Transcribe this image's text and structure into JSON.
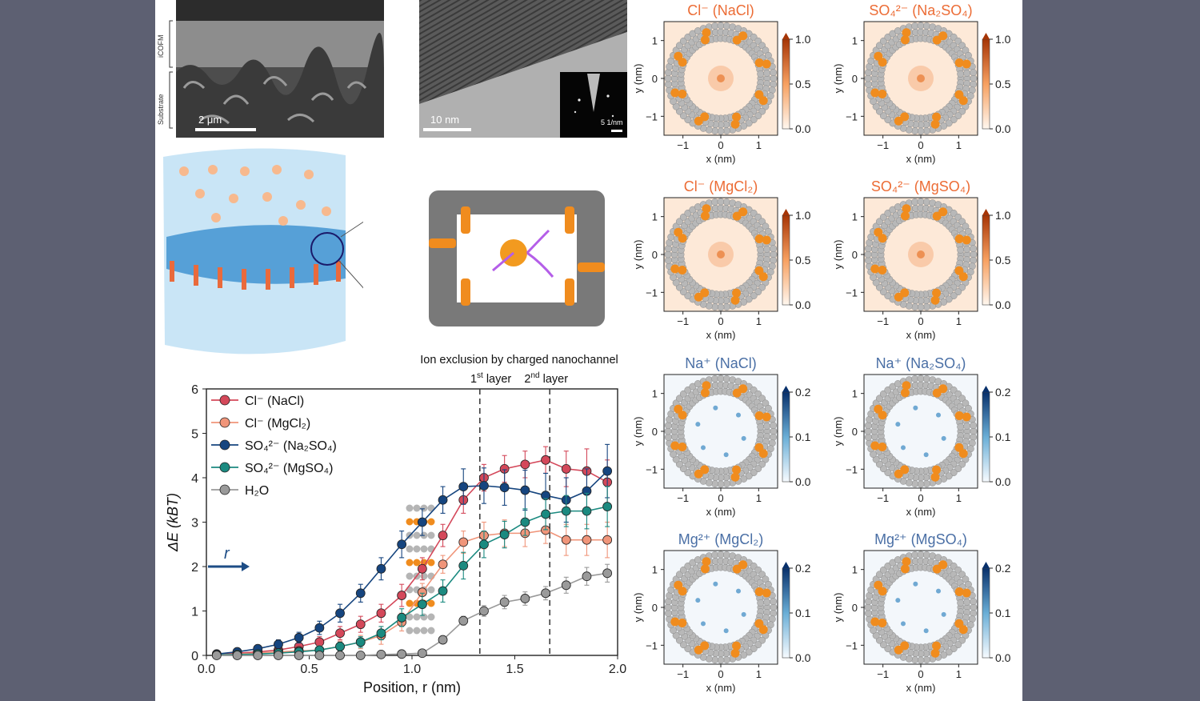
{
  "sem_image": {
    "layer_top_label": "iCOFM",
    "layer_bottom_label": "Substrate",
    "scale_bar_label": "2 μm"
  },
  "tem_image": {
    "scale_bar_label": "10 nm",
    "inset_scale_label": "5 1/nm"
  },
  "illustration_caption": {
    "line1": "Ion exclusion by charged nanochannel",
    "layer1_main": "1",
    "layer1_sup": "st",
    "layer1_rest": " layer",
    "layer2_main": "2",
    "layer2_sup": "nd",
    "layer2_rest": " layer",
    "arrow_label": "r"
  },
  "colors": {
    "cl_nacl": "#d4485a",
    "cl_mgcl2": "#f0957a",
    "so4_na2so4": "#16457f",
    "so4_mgso4": "#1b8a80",
    "h2o": "#9a9a9a",
    "anion_title": "#ec6c35",
    "cation_title": "#4a6fa5",
    "pore_atoms": "#b8b8b8",
    "charge_atoms": "#f08c1e"
  },
  "chart_data": [
    {
      "type": "line",
      "xlabel": "Position, r (nm)",
      "ylabel": "ΔE (kBT)",
      "xlim": [
        0,
        2.0
      ],
      "ylim": [
        0,
        6
      ],
      "xticks": [
        "0.0",
        "0.5",
        "1.0",
        "1.5",
        "2.0"
      ],
      "yticks": [
        "0",
        "1",
        "2",
        "3",
        "4",
        "5",
        "6"
      ],
      "vlines": [
        1.33,
        1.67
      ],
      "legend_position": "top-left",
      "x": [
        0.05,
        0.15,
        0.25,
        0.35,
        0.45,
        0.55,
        0.65,
        0.75,
        0.85,
        0.95,
        1.05,
        1.15,
        1.25,
        1.35,
        1.45,
        1.55,
        1.65,
        1.75,
        1.85,
        1.95
      ],
      "series": [
        {
          "name": "Cl⁻ (NaCl)",
          "values": [
            0.02,
            0.05,
            0.08,
            0.12,
            0.2,
            0.3,
            0.5,
            0.7,
            0.95,
            1.35,
            1.95,
            2.7,
            3.5,
            4.0,
            4.2,
            4.3,
            4.4,
            4.2,
            4.15,
            3.9
          ],
          "err": [
            0.05,
            0.05,
            0.08,
            0.08,
            0.1,
            0.12,
            0.15,
            0.18,
            0.2,
            0.25,
            0.25,
            0.25,
            0.3,
            0.3,
            0.3,
            0.3,
            0.3,
            0.4,
            0.5,
            0.5
          ]
        },
        {
          "name": "Cl⁻ (MgCl₂)",
          "values": [
            0.01,
            0.03,
            0.05,
            0.08,
            0.1,
            0.12,
            0.2,
            0.3,
            0.45,
            0.75,
            1.42,
            2.05,
            2.55,
            2.7,
            2.75,
            2.75,
            2.82,
            2.6,
            2.6,
            2.6
          ],
          "err": [
            0.04,
            0.04,
            0.05,
            0.06,
            0.08,
            0.1,
            0.12,
            0.15,
            0.2,
            0.2,
            0.2,
            0.2,
            0.25,
            0.3,
            0.3,
            0.3,
            0.3,
            0.35,
            0.35,
            0.4
          ]
        },
        {
          "name": "SO₄²⁻ (Na₂SO₄)",
          "values": [
            0.03,
            0.08,
            0.15,
            0.25,
            0.4,
            0.62,
            0.95,
            1.4,
            1.95,
            2.5,
            3.0,
            3.5,
            3.8,
            3.82,
            3.78,
            3.72,
            3.6,
            3.5,
            3.7,
            4.15
          ],
          "err": [
            0.05,
            0.06,
            0.08,
            0.1,
            0.12,
            0.15,
            0.2,
            0.2,
            0.25,
            0.3,
            0.3,
            0.3,
            0.4,
            0.4,
            0.4,
            0.45,
            0.5,
            0.5,
            0.5,
            0.6
          ]
        },
        {
          "name": "SO₄²⁻ (MgSO₄)",
          "values": [
            0.01,
            0.02,
            0.03,
            0.05,
            0.08,
            0.12,
            0.2,
            0.3,
            0.5,
            0.85,
            1.15,
            1.45,
            2.02,
            2.5,
            2.72,
            3.0,
            3.18,
            3.25,
            3.25,
            3.35
          ],
          "err": [
            0.03,
            0.04,
            0.04,
            0.05,
            0.06,
            0.08,
            0.1,
            0.12,
            0.15,
            0.2,
            0.25,
            0.25,
            0.3,
            0.3,
            0.3,
            0.3,
            0.35,
            0.35,
            0.4,
            0.45
          ]
        },
        {
          "name": "H₂O",
          "values": [
            0.0,
            0.0,
            0.0,
            0.0,
            0.0,
            0.0,
            0.0,
            0.0,
            0.02,
            0.03,
            0.05,
            0.35,
            0.78,
            1.0,
            1.2,
            1.28,
            1.4,
            1.58,
            1.78,
            1.85
          ],
          "err": [
            0.02,
            0.02,
            0.02,
            0.02,
            0.02,
            0.02,
            0.02,
            0.02,
            0.03,
            0.03,
            0.05,
            0.08,
            0.1,
            0.12,
            0.15,
            0.15,
            0.15,
            0.18,
            0.2,
            0.2
          ]
        }
      ]
    },
    {
      "type": "heatmap",
      "title": "Cl⁻ (NaCl)",
      "xlabel": "x (nm)",
      "ylabel": "y (nm)",
      "xticks": [
        "−1",
        "0",
        "1"
      ],
      "yticks": [
        "1",
        "0",
        "−1"
      ],
      "colorbar": {
        "ticks": [
          "1.0",
          "0.5",
          "0.0"
        ],
        "range": [
          0,
          1.0
        ],
        "colormap": "Oranges"
      }
    },
    {
      "type": "heatmap",
      "title": "SO₄²⁻ (Na₂SO₄)",
      "xlabel": "x (nm)",
      "ylabel": "y (nm)",
      "xticks": [
        "−1",
        "0",
        "1"
      ],
      "yticks": [
        "1",
        "0",
        "−1"
      ],
      "colorbar": {
        "ticks": [
          "1.0",
          "0.5",
          "0.0"
        ],
        "range": [
          0,
          1.0
        ],
        "colormap": "Oranges"
      }
    },
    {
      "type": "heatmap",
      "title": "Cl⁻ (MgCl₂)",
      "xlabel": "x (nm)",
      "ylabel": "y (nm)",
      "xticks": [
        "−1",
        "0",
        "1"
      ],
      "yticks": [
        "1",
        "0",
        "−1"
      ],
      "colorbar": {
        "ticks": [
          "1.0",
          "0.5",
          "0.0"
        ],
        "range": [
          0,
          1.0
        ],
        "colormap": "Oranges"
      }
    },
    {
      "type": "heatmap",
      "title": "SO₄²⁻ (MgSO₄)",
      "xlabel": "x (nm)",
      "ylabel": "y (nm)",
      "xticks": [
        "−1",
        "0",
        "1"
      ],
      "yticks": [
        "1",
        "0",
        "−1"
      ],
      "colorbar": {
        "ticks": [
          "1.0",
          "0.5",
          "0.0"
        ],
        "range": [
          0,
          1.0
        ],
        "colormap": "Oranges"
      }
    },
    {
      "type": "heatmap",
      "title": "Na⁺ (NaCl)",
      "xlabel": "x (nm)",
      "ylabel": "y (nm)",
      "xticks": [
        "−1",
        "0",
        "1"
      ],
      "yticks": [
        "1",
        "0",
        "−1"
      ],
      "colorbar": {
        "ticks": [
          "0.2",
          "0.1",
          "0.0"
        ],
        "range": [
          0,
          0.2
        ],
        "colormap": "Blues"
      }
    },
    {
      "type": "heatmap",
      "title": "Na⁺ (Na₂SO₄)",
      "xlabel": "x (nm)",
      "ylabel": "y (nm)",
      "xticks": [
        "−1",
        "0",
        "1"
      ],
      "yticks": [
        "1",
        "0",
        "−1"
      ],
      "colorbar": {
        "ticks": [
          "0.2",
          "0.1",
          "0.0"
        ],
        "range": [
          0,
          0.2
        ],
        "colormap": "Blues"
      }
    },
    {
      "type": "heatmap",
      "title": "Mg²⁺ (MgCl₂)",
      "xlabel": "x (nm)",
      "ylabel": "y (nm)",
      "xticks": [
        "−1",
        "0",
        "1"
      ],
      "yticks": [
        "1",
        "0",
        "−1"
      ],
      "colorbar": {
        "ticks": [
          "0.2",
          "0.1",
          "0.0"
        ],
        "range": [
          0,
          0.2
        ],
        "colormap": "Blues"
      }
    },
    {
      "type": "heatmap",
      "title": "Mg²⁺ (MgSO₄)",
      "xlabel": "x (nm)",
      "ylabel": "y (nm)",
      "xticks": [
        "−1",
        "0",
        "1"
      ],
      "yticks": [
        "1",
        "0",
        "−1"
      ],
      "colorbar": {
        "ticks": [
          "0.2",
          "0.1",
          "0.0"
        ],
        "range": [
          0,
          0.2
        ],
        "colormap": "Blues"
      }
    }
  ]
}
